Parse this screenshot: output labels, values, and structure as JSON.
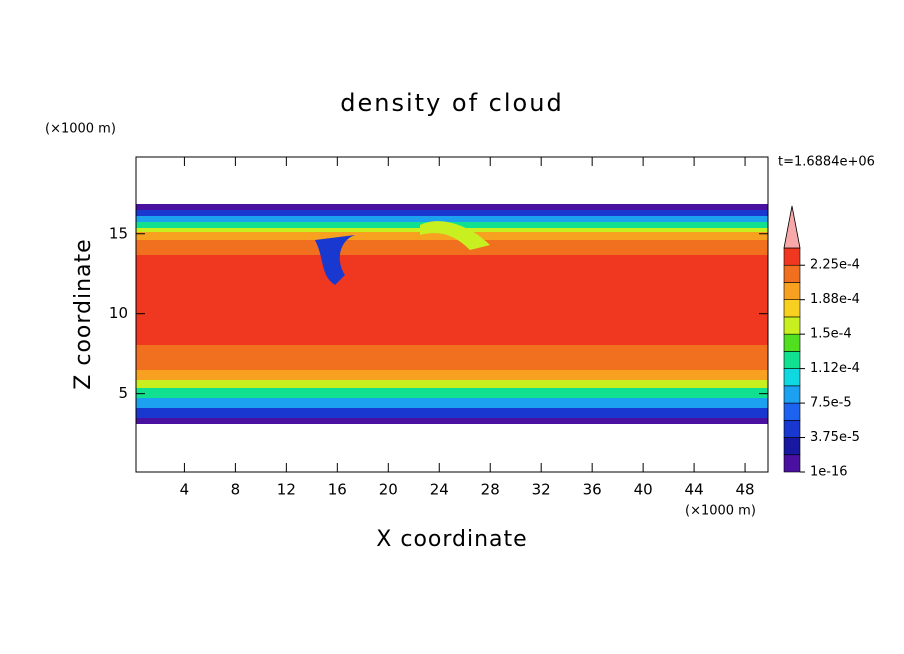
{
  "chart_data": {
    "type": "contour",
    "title": "density of cloud",
    "xlabel": "X coordinate",
    "ylabel": "Z coordinate",
    "xunit": "(×1000 m)",
    "yunit": "(×1000 m)",
    "annotation": "t=1.6884e+06",
    "xlim": [
      0.2,
      49.8
    ],
    "xticks": [
      4,
      8,
      12,
      16,
      20,
      24,
      28,
      32,
      36,
      40,
      44,
      48
    ],
    "ylim": [
      0.1,
      19.8
    ],
    "yticks": [
      5,
      10,
      15
    ],
    "colorbar": {
      "levels": [
        1e-16,
        1.875e-05,
        3.75e-05,
        5.625e-05,
        7.5e-05,
        9.375e-05,
        0.0001125,
        0.00013125,
        0.00015,
        0.00016875,
        0.0001875,
        0.00020625,
        0.000225,
        0.00024375
      ],
      "colors": [
        "#4a10a0",
        "#1818a0",
        "#1838d0",
        "#1c64f0",
        "#1ca0f0",
        "#10d8e0",
        "#10e090",
        "#50e020",
        "#c8f020",
        "#f8d020",
        "#f8a020",
        "#f07020",
        "#f03820"
      ],
      "extend_color": "#f8a8a8",
      "ticks": [
        {
          "value": 1e-16,
          "label": "1e-16"
        },
        {
          "value": 3.75e-05,
          "label": "3.75e-5"
        },
        {
          "value": 7.5e-05,
          "label": "7.5e-5"
        },
        {
          "value": 0.0001125,
          "label": "1.12e-4"
        },
        {
          "value": 0.00015,
          "label": "1.5e-4"
        },
        {
          "value": 0.0001875,
          "label": "1.88e-4"
        },
        {
          "value": 0.000225,
          "label": "2.25e-4"
        }
      ]
    }
  }
}
